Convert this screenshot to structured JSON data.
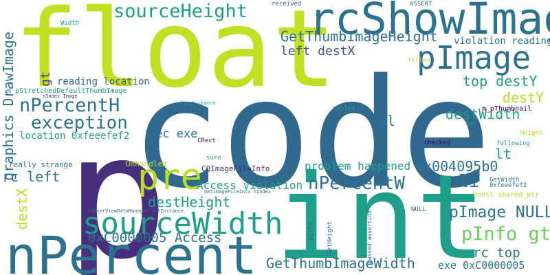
{
  "word_cloud": {
    "words": [
      {
        "text": "code",
        "color": "#31688e"
      },
      {
        "text": "float",
        "color": "#c2df23"
      },
      {
        "text": "int",
        "color": "#1f9e89"
      },
      {
        "text": "p",
        "color": "#472f7d"
      },
      {
        "text": "nPercent",
        "color": "#2c728e"
      },
      {
        "text": "rcShowImage",
        "color": "#2c728e"
      },
      {
        "text": "pImage",
        "color": "#2c728e"
      },
      {
        "text": "sourceWidth",
        "color": "#1f9e89"
      },
      {
        "text": "pre",
        "color": "#b5de2b"
      },
      {
        "text": "sourceHeight",
        "color": "#1f9e89"
      },
      {
        "text": "exception",
        "color": "#2c728e"
      },
      {
        "text": "nPercentH",
        "color": "#2c728e"
      },
      {
        "text": "nPercentW",
        "color": "#2c728e"
      },
      {
        "text": "GetThumbImageHeight",
        "color": "#2c728e"
      },
      {
        "text": "GetThumbImageWidth",
        "color": "#2c728e"
      },
      {
        "text": "pInfo gt",
        "color": "#6ccd5a"
      },
      {
        "text": "pImage NULL",
        "color": "#2c728e"
      },
      {
        "text": "0xC0000005 Access",
        "color": "#2c728e"
      },
      {
        "text": "destHeight",
        "color": "#1f9e89"
      },
      {
        "text": "destWidth",
        "color": "#1f9e89"
      },
      {
        "text": "violation reading",
        "color": "#2c728e"
      },
      {
        "text": "problem happened",
        "color": "#1f9e89"
      },
      {
        "text": "0x004095b0",
        "color": "#2c728e"
      },
      {
        "text": "Access violation",
        "color": "#1f9e89"
      },
      {
        "text": "top destY",
        "color": "#1f9e89"
      },
      {
        "text": "destY",
        "color": "#b5de2b"
      },
      {
        "text": "left destX",
        "color": "#3b528b"
      },
      {
        "text": "reading location",
        "color": "#31688e"
      },
      {
        "text": "location 0xfeeefef2",
        "color": "#1f9e89"
      },
      {
        "text": "rc left",
        "color": "#2c728e"
      },
      {
        "text": "ec exe",
        "color": "#2c728e"
      },
      {
        "text": "exe 0xC0000005",
        "color": "#2c728e"
      },
      {
        "text": "rc top",
        "color": "#2c728e"
      },
      {
        "text": "li",
        "color": "#2c728e"
      },
      {
        "text": "ul",
        "color": "#2c728e"
      },
      {
        "text": "lt",
        "color": "#1f9e89"
      },
      {
        "text": "gt",
        "color": "#472f7d"
      },
      {
        "text": "graphics DrawImage",
        "color": "#2c728e"
      },
      {
        "text": "destX",
        "color": "#b5de2b"
      },
      {
        "text": "m_pStretchedDefaultThumbImage",
        "color": "#1f9e89"
      },
      {
        "text": "CQImageFileInfo",
        "color": "#472f7d"
      },
      {
        "text": "Unhandled",
        "color": "#b5de2b"
      },
      {
        "text": "really strange",
        "color": "#2c728e"
      },
      {
        "text": "m_pThumbnail",
        "color": "#440154"
      },
      {
        "text": "boost shared_ptr",
        "color": "#b5de2b"
      },
      {
        "text": "GetWidth",
        "color": "#2c728e"
      },
      {
        "text": "0xfeeefef2",
        "color": "#2c728e"
      },
      {
        "text": "Width",
        "color": "#1f9e89"
      },
      {
        "text": "received",
        "color": "#31688e"
      },
      {
        "text": "ASSERT",
        "color": "#31688e"
      },
      {
        "text": "follow",
        "color": "#b5de2b"
      },
      {
        "text": "called",
        "color": "#1f9e89"
      },
      {
        "text": "checked",
        "color": "#440154"
      },
      {
        "text": "met",
        "color": "#1f9e89"
      },
      {
        "text": "Height",
        "color": "#b5de2b"
      },
      {
        "text": "following",
        "color": "#1f9e89"
      },
      {
        "text": "First chance",
        "color": "#1f9e89"
      },
      {
        "text": "problem",
        "color": "#31688e"
      },
      {
        "text": "CRect",
        "color": "#440154"
      },
      {
        "text": "sure",
        "color": "#1f9e89"
      },
      {
        "text": "NULL",
        "color": "#31688e"
      },
      {
        "text": "pInfo",
        "color": "#31688e"
      },
      {
        "text": "GetHeight",
        "color": "#31688e"
      },
      {
        "text": "passed assertion",
        "color": "#31688e"
      },
      {
        "text": "nIndex Image",
        "color": "#472f7d"
      },
      {
        "text": "GetImageFileInfo nIndex",
        "color": "#31688e"
      },
      {
        "text": "CQUserViewDataManager GetInstance",
        "color": "#31688e"
      }
    ]
  }
}
